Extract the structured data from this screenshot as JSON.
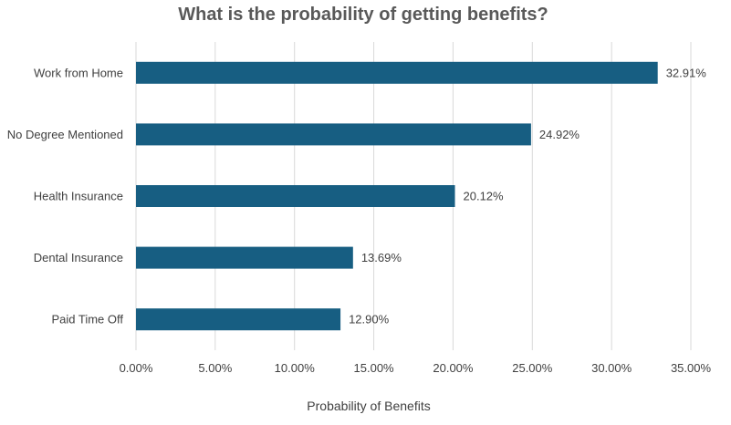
{
  "chart_data": {
    "type": "bar",
    "orientation": "horizontal",
    "title": "What is the probability of getting benefits?",
    "xlabel": "Probability of Benefits",
    "ylabel": "",
    "categories": [
      "Work from Home",
      "No Degree Mentioned",
      "Health Insurance",
      "Dental Insurance",
      "Paid Time Off"
    ],
    "values": [
      32.91,
      24.92,
      20.12,
      13.69,
      12.9
    ],
    "data_labels": [
      "32.91%",
      "24.92%",
      "20.12%",
      "13.69%",
      "12.90%"
    ],
    "xlim": [
      0,
      35
    ],
    "xticks": [
      0,
      5,
      10,
      15,
      20,
      25,
      30,
      35
    ],
    "xtick_labels": [
      "0.00%",
      "5.00%",
      "10.00%",
      "15.00%",
      "20.00%",
      "25.00%",
      "30.00%",
      "35.00%"
    ],
    "grid": true,
    "bar_color": "#175e82"
  }
}
